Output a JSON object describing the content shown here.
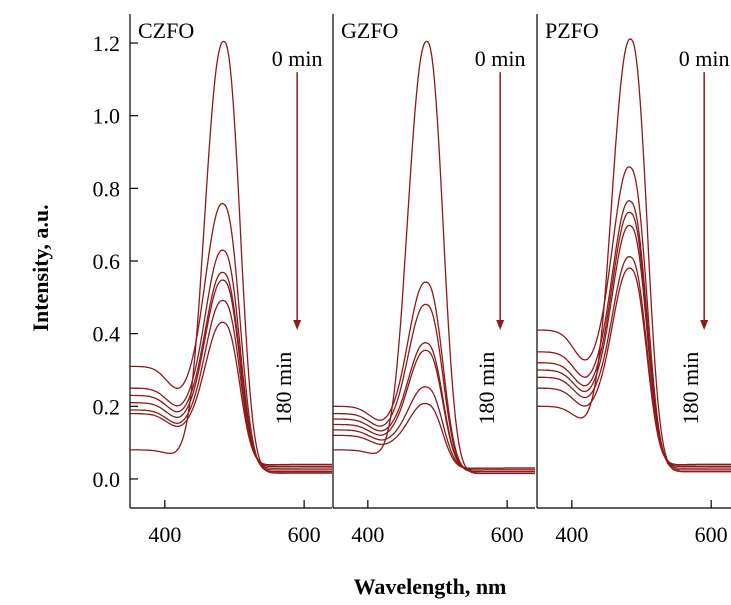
{
  "chart_data": {
    "type": "line",
    "xlabel": "Wavelength, nm",
    "ylabel": "Intensity, a.u.",
    "xlim": [
      350,
      640
    ],
    "ylim": [
      -0.08,
      1.28
    ],
    "x_ticks": [
      400,
      600
    ],
    "y_ticks": [
      0.0,
      0.2,
      0.4,
      0.6,
      0.8,
      1.0,
      1.2
    ],
    "y_tick_labels": [
      "0.0",
      "0.2",
      "0.4",
      "0.6",
      "0.8",
      "1.0",
      "1.2"
    ],
    "x_tick_labels": [
      "400",
      "600"
    ],
    "line_color": "#8b1a1a",
    "annotation": {
      "start_label": "0 min",
      "end_label": "180 min",
      "arrow_x": 590,
      "arrow_y_from": 1.12,
      "arrow_y_to": 0.41
    },
    "panels": [
      {
        "label": "CZFO",
        "series": [
          {
            "peak": 1.2,
            "start": 0.08,
            "end": 0.016
          },
          {
            "peak": 0.74,
            "start": 0.31,
            "end": 0.02
          },
          {
            "peak": 0.615,
            "start": 0.25,
            "end": 0.025
          },
          {
            "peak": 0.555,
            "start": 0.23,
            "end": 0.03
          },
          {
            "peak": 0.535,
            "start": 0.21,
            "end": 0.035
          },
          {
            "peak": 0.48,
            "start": 0.19,
            "end": 0.035
          },
          {
            "peak": 0.42,
            "start": 0.18,
            "end": 0.04
          }
        ]
      },
      {
        "label": "GZFO",
        "series": [
          {
            "peak": 1.2,
            "start": 0.08,
            "end": 0.015
          },
          {
            "peak": 0.53,
            "start": 0.2,
            "end": 0.02
          },
          {
            "peak": 0.47,
            "start": 0.18,
            "end": 0.02
          },
          {
            "peak": 0.365,
            "start": 0.165,
            "end": 0.025
          },
          {
            "peak": 0.345,
            "start": 0.15,
            "end": 0.025
          },
          {
            "peak": 0.245,
            "start": 0.135,
            "end": 0.03
          },
          {
            "peak": 0.2,
            "start": 0.12,
            "end": 0.03
          }
        ]
      },
      {
        "label": "PZFO",
        "series": [
          {
            "peak": 1.2,
            "start": 0.2,
            "end": 0.02
          },
          {
            "peak": 0.835,
            "start": 0.41,
            "end": 0.025
          },
          {
            "peak": 0.745,
            "start": 0.35,
            "end": 0.03
          },
          {
            "peak": 0.715,
            "start": 0.32,
            "end": 0.035
          },
          {
            "peak": 0.68,
            "start": 0.3,
            "end": 0.035
          },
          {
            "peak": 0.595,
            "start": 0.28,
            "end": 0.04
          },
          {
            "peak": 0.565,
            "start": 0.25,
            "end": 0.04
          }
        ]
      }
    ]
  }
}
